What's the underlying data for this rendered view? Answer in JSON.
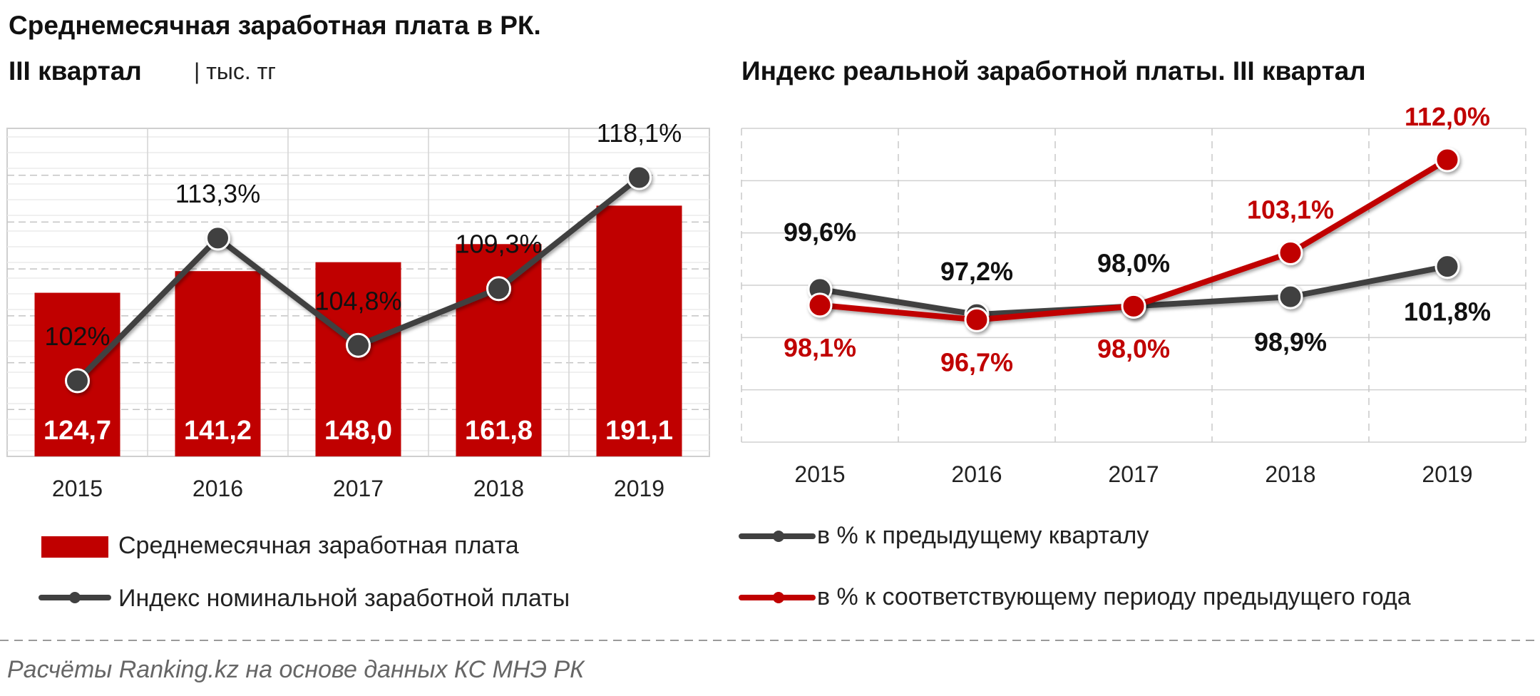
{
  "left_chart": {
    "title_line1": "Среднемесячная заработная плата в РК.",
    "title_line2": "III квартал",
    "unit": "| тыс. тг",
    "legend_bar": "Среднемесячная заработная плата",
    "legend_line": "Индекс номинальной заработной платы"
  },
  "right_chart": {
    "title": "Индекс реальной заработной платы. III квартал",
    "legend_series1": "в % к предыдущему кварталу",
    "legend_series2": "в % к соответствующему периоду предыдущего года"
  },
  "footer": {
    "source": "Расчёты Ranking.kz на основе данных КС МНЭ РК"
  },
  "colors": {
    "bar": "#c00000",
    "dark_line": "#404040",
    "red_line": "#c00000"
  },
  "chart_data": [
    {
      "type": "bar",
      "categories": [
        "2015",
        "2016",
        "2017",
        "2018",
        "2019"
      ],
      "bar_values": [
        124.7,
        141.2,
        148.0,
        161.8,
        191.1
      ],
      "bar_labels": [
        "124,7",
        "141,2",
        "148,0",
        "161,8",
        "191,1"
      ],
      "bar_range": [
        0,
        250
      ],
      "line_values": [
        102.0,
        113.3,
        104.8,
        109.3,
        118.1
      ],
      "line_labels": [
        "102%",
        "113,3%",
        "104,8%",
        "109,3%",
        "118,1%"
      ],
      "line_range": [
        96,
        122
      ],
      "grid": true
    },
    {
      "type": "line",
      "categories": [
        "2015",
        "2016",
        "2017",
        "2018",
        "2019"
      ],
      "series": [
        {
          "values": [
            99.6,
            97.2,
            98.0,
            98.9,
            101.8
          ],
          "labels": [
            "99,6%",
            "97,2%",
            "98,0%",
            "98,9%",
            "101,8%"
          ],
          "color": "#404040"
        },
        {
          "values": [
            98.1,
            96.7,
            98.0,
            103.1,
            112.0
          ],
          "labels": [
            "98,1%",
            "96,7%",
            "98,0%",
            "103,1%",
            "112,0%"
          ],
          "color": "#c00000"
        }
      ],
      "ylim": [
        85,
        115
      ],
      "grid": true
    }
  ]
}
